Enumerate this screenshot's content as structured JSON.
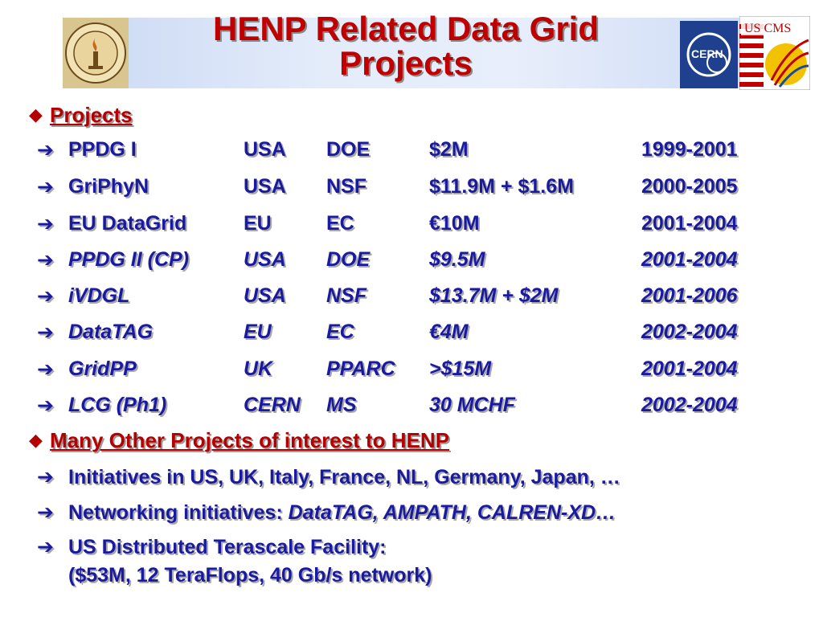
{
  "slide": {
    "title_line1": "HENP Related Data Grid",
    "title_line2": "Projects",
    "logos": {
      "left": "caltech-seal",
      "right_1": "cern-logo",
      "right_2": "us-cms-logo",
      "uscms_text": "US CMS",
      "cern_text": "CERN"
    }
  },
  "section1": {
    "bullet_icon": "diamond-icon",
    "label": "Projects",
    "rows": [
      {
        "name": "PPDG I",
        "country": "USA",
        "agency": "DOE",
        "funding": "$2M",
        "years": "1999-2001",
        "italic": false
      },
      {
        "name": "GriPhyN",
        "country": "USA",
        "agency": "NSF",
        "funding": "$11.9M + $1.6M",
        "years": "2000-2005",
        "italic": false
      },
      {
        "name": "EU DataGrid",
        "country": "EU",
        "agency": "EC",
        "funding": "€10M",
        "years": "2001-2004",
        "italic": false
      },
      {
        "name": "PPDG II (CP)",
        "country": "USA",
        "agency": "DOE",
        "funding": "$9.5M",
        "years": "2001-2004",
        "italic": true
      },
      {
        "name": "iVDGL",
        "country": "USA",
        "agency": "NSF",
        "funding": "$13.7M + $2M",
        "years": "2001-2006",
        "italic": true
      },
      {
        "name": "DataTAG",
        "country": "EU",
        "agency": "EC",
        "funding": "€4M",
        "years": "2002-2004",
        "italic": true
      },
      {
        "name": "GridPP",
        "country": "UK",
        "agency": "PPARC",
        "funding": ">$15M",
        "years": "2001-2004",
        "italic": true
      },
      {
        "name": "LCG (Ph1)",
        "country": "CERN",
        "agency": "MS",
        "funding": "30 MCHF",
        "years": "2002-2004",
        "italic": true
      }
    ]
  },
  "section2": {
    "bullet_icon": "diamond-icon",
    "label": "Many Other Projects of interest to HENP",
    "items": [
      {
        "plain": "Initiatives in US, UK, Italy, France, NL, Germany, Japan, …",
        "italic": ""
      },
      {
        "plain": "Networking initiatives: ",
        "italic": "DataTAG, AMPATH, CALREN-XD…"
      },
      {
        "plain": "US Distributed Terascale Facility:",
        "italic": ""
      },
      {
        "plain": "($53M, 12 TeraFlops, 40 Gb/s network)",
        "italic": ""
      }
    ]
  },
  "arrow_glyph": "➔",
  "diamond_glyph": "◆",
  "colors": {
    "title": "#c00000",
    "body": "#1a1aa0",
    "bullet": "#b40000",
    "header_band": "#c9d8f4"
  }
}
